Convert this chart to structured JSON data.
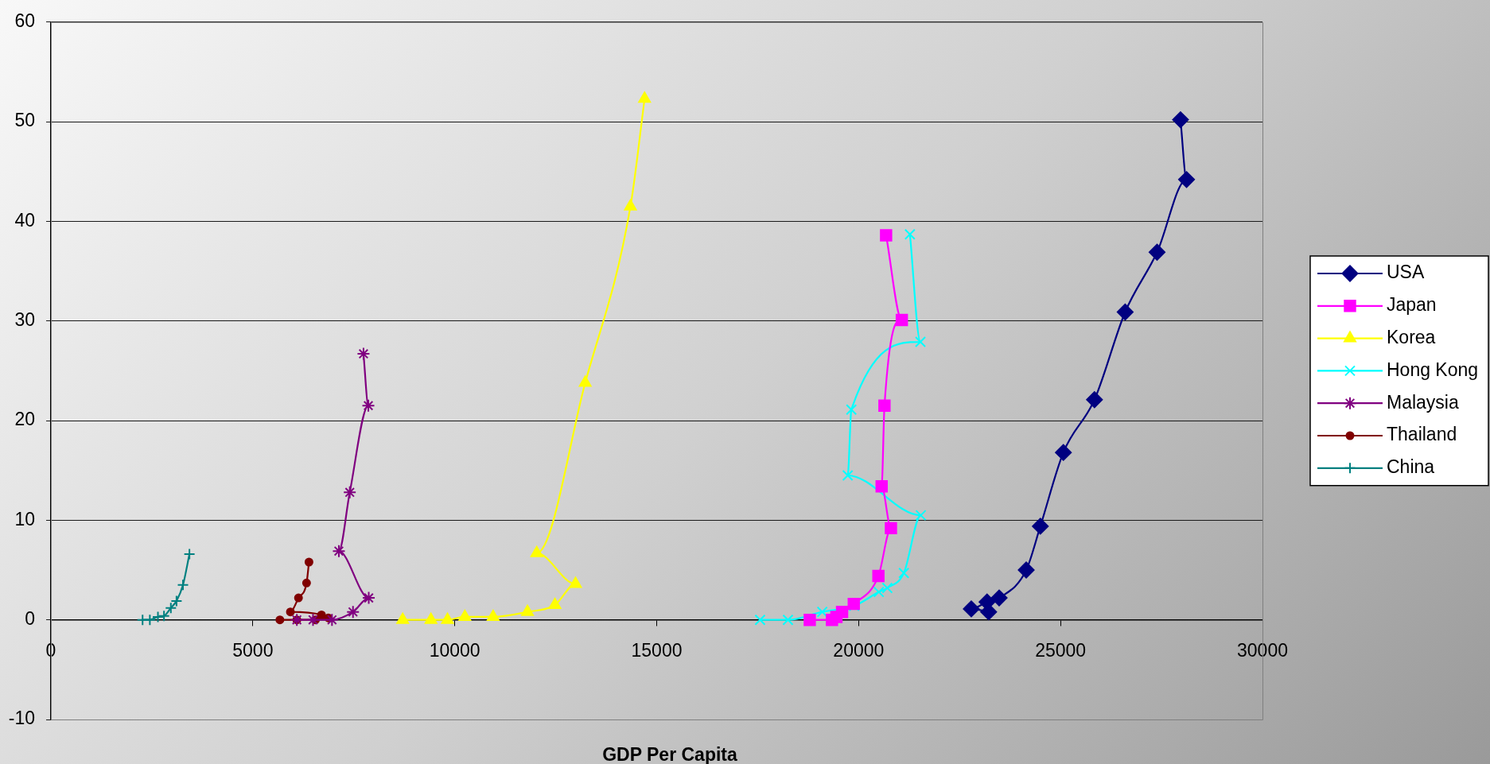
{
  "chart_data": {
    "type": "line",
    "xlabel": "GDP Per Capita",
    "xlim": [
      0,
      30000
    ],
    "xticks": [
      0,
      5000,
      10000,
      15000,
      20000,
      25000,
      30000
    ],
    "ylim": [
      -10,
      60
    ],
    "yticks": [
      -10,
      0,
      10,
      20,
      30,
      40,
      50,
      60
    ],
    "grid": "y",
    "legend": "right",
    "series": [
      {
        "name": "USA",
        "color": "#000080",
        "marker": "diamond",
        "x": [
          23220,
          22790,
          23180,
          23480,
          24150,
          24500,
          25070,
          25840,
          26600,
          27390,
          28120,
          27970
        ],
        "values": [
          0.8,
          1.1,
          1.8,
          2.2,
          5.0,
          9.4,
          16.8,
          22.1,
          30.9,
          36.9,
          44.2,
          50.2
        ]
      },
      {
        "name": "Japan",
        "color": "#ff00ff",
        "marker": "square",
        "x": [
          18790,
          19340,
          19450,
          19590,
          19880,
          20490,
          20800,
          20570,
          20640,
          21070,
          20680
        ],
        "values": [
          0,
          0,
          0.3,
          0.8,
          1.6,
          4.4,
          9.2,
          13.4,
          21.5,
          30.1,
          38.6
        ]
      },
      {
        "name": "Korea",
        "color": "#ffff00",
        "marker": "triangle",
        "x": [
          8710,
          9410,
          9820,
          10250,
          10950,
          11800,
          12480,
          12990,
          12030,
          13230,
          14350,
          14700
        ],
        "values": [
          0,
          0,
          0,
          0.3,
          0.3,
          0.8,
          1.5,
          3.6,
          6.7,
          23.8,
          41.5,
          52.3
        ]
      },
      {
        "name": "Hong Kong",
        "color": "#00ffff",
        "marker": "x",
        "x": [
          17560,
          18250,
          19100,
          19890,
          20500,
          20710,
          21120,
          21540,
          19730,
          19820,
          21530,
          21270
        ],
        "values": [
          0,
          0,
          0.8,
          1.4,
          2.8,
          3.2,
          4.7,
          10.5,
          14.5,
          21.1,
          27.9,
          38.7
        ]
      },
      {
        "name": "Malaysia",
        "color": "#800080",
        "marker": "cross",
        "x": [
          6090,
          6490,
          6960,
          7480,
          7870,
          7130,
          7400,
          7860,
          7740
        ],
        "values": [
          0,
          0,
          0,
          0.8,
          2.2,
          6.9,
          12.8,
          21.5,
          26.7
        ]
      },
      {
        "name": "Thailand",
        "color": "#800000",
        "marker": "circle",
        "x": [
          5670,
          6090,
          6550,
          6870,
          6700,
          5930,
          6130,
          6330,
          6390
        ],
        "values": [
          0,
          0,
          0,
          0.2,
          0.5,
          0.8,
          2.2,
          3.7,
          5.8
        ]
      },
      {
        "name": "China",
        "color": "#008080",
        "marker": "plus",
        "x": [
          2270,
          2450,
          2650,
          2800,
          2970,
          3110,
          3270,
          3430
        ],
        "values": [
          0,
          0,
          0.3,
          0.4,
          1.2,
          1.9,
          3.5,
          6.6
        ]
      }
    ]
  }
}
